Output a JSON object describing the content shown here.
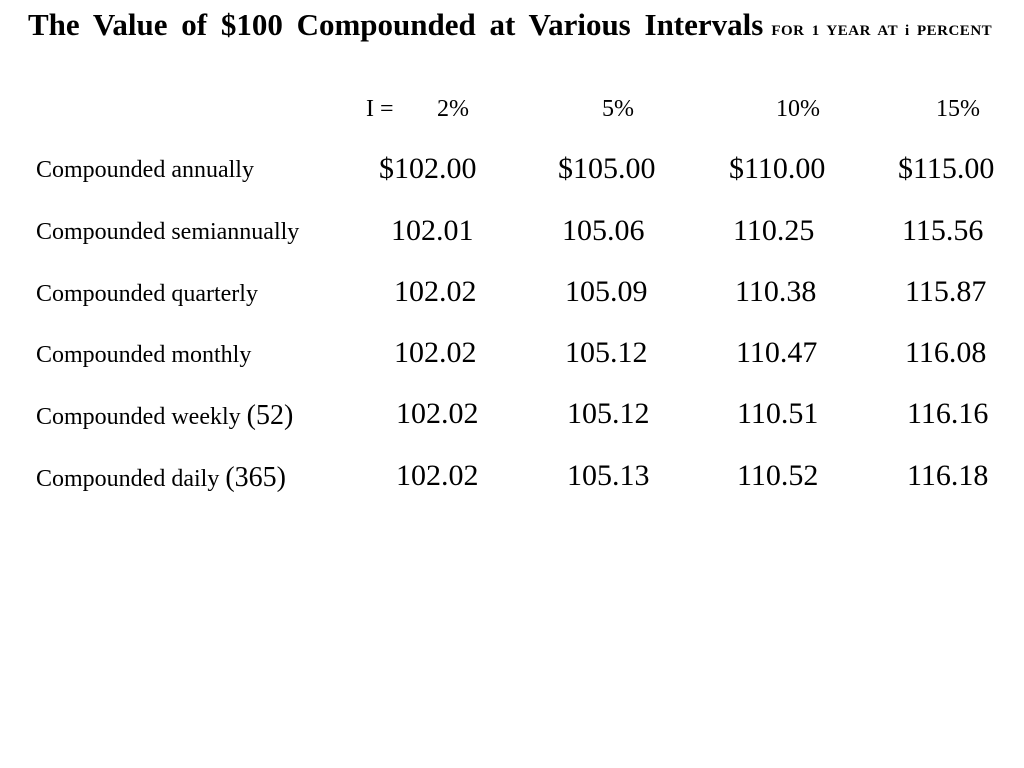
{
  "title": {
    "main": "The Value of $100 Compounded at Various Intervals",
    "sub": "FOR 1 YEAR AT i PERCENT"
  },
  "header": {
    "rate_label": "I =",
    "rates": [
      "2%",
      "5%",
      "10%",
      "15%"
    ]
  },
  "rows": [
    {
      "label": "Compounded annually",
      "paren": "",
      "values": [
        "$102.00",
        "$105.00",
        "$110.00",
        "$115.00"
      ]
    },
    {
      "label": "Compounded semiannually",
      "paren": "",
      "values": [
        "102.01",
        "105.06",
        "110.25",
        "115.56"
      ]
    },
    {
      "label": "Compounded quarterly",
      "paren": "",
      "values": [
        "102.02",
        "105.09",
        "110.38",
        "115.87"
      ]
    },
    {
      "label": "Compounded monthly",
      "paren": "",
      "values": [
        "102.02",
        "105.12",
        "110.47",
        "116.08"
      ]
    },
    {
      "label": "Compounded weekly",
      "paren": "(52)",
      "values": [
        "102.02",
        "105.12",
        "110.51",
        "116.16"
      ]
    },
    {
      "label": "Compounded daily",
      "paren": "(365)",
      "values": [
        "102.02",
        "105.13",
        "110.52",
        "116.18"
      ]
    }
  ]
}
